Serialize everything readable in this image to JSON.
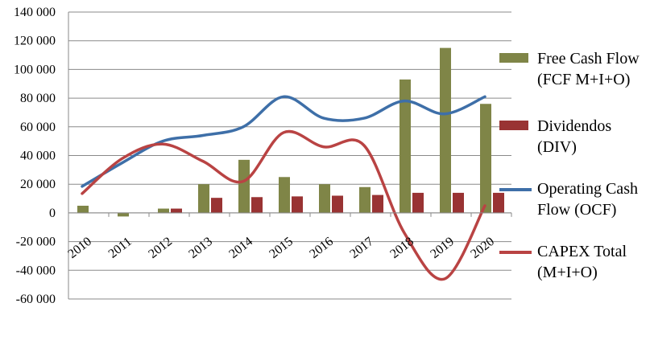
{
  "chart_data": {
    "type": "bar+line",
    "categories": [
      "2010",
      "2011",
      "2012",
      "2013",
      "2014",
      "2015",
      "2016",
      "2017",
      "2018",
      "2019",
      "2020"
    ],
    "series": [
      {
        "name": "Free Cash Flow (FCF M+I+O)",
        "type": "bar",
        "color": "#7f8547",
        "values": [
          5000,
          -2500,
          3000,
          20000,
          37000,
          25000,
          20000,
          18000,
          93000,
          115000,
          76000
        ]
      },
      {
        "name": "Dividendos (DIV)",
        "type": "bar",
        "color": "#993333",
        "values": [
          0,
          0,
          3000,
          10500,
          11000,
          11500,
          12000,
          12500,
          14000,
          14000,
          14000
        ]
      },
      {
        "name": "Operating Cash Flow (OCF)",
        "type": "line",
        "color": "#3e6fa8",
        "values": [
          18500,
          35000,
          50000,
          54000,
          60000,
          81000,
          66000,
          66000,
          78000,
          69000,
          81000
        ]
      },
      {
        "name": "CAPEX Total (M+I+O)",
        "type": "line",
        "color": "#b94343",
        "values": [
          13500,
          38000,
          48000,
          36000,
          22000,
          56000,
          46000,
          47000,
          -14000,
          -46000,
          5000
        ]
      }
    ],
    "yticks": [
      "140 000",
      "120 000",
      "100 000",
      "80 000",
      "60 000",
      "40 000",
      "20 000",
      "0",
      "-20 000",
      "-40 000",
      "-60 000"
    ],
    "ylim": [
      -60000,
      140000
    ],
    "grid": true,
    "legend_position": "right"
  },
  "legend": [
    {
      "label": "Free Cash Flow (FCF M+I+O)",
      "kind": "bar",
      "color": "#7f8547"
    },
    {
      "label": "Dividendos (DIV)",
      "kind": "bar",
      "color": "#993333"
    },
    {
      "label": "Operating Cash Flow (OCF)",
      "kind": "line",
      "color": "#3e6fa8"
    },
    {
      "label": "CAPEX Total (M+I+O)",
      "kind": "line",
      "color": "#b94343"
    }
  ]
}
